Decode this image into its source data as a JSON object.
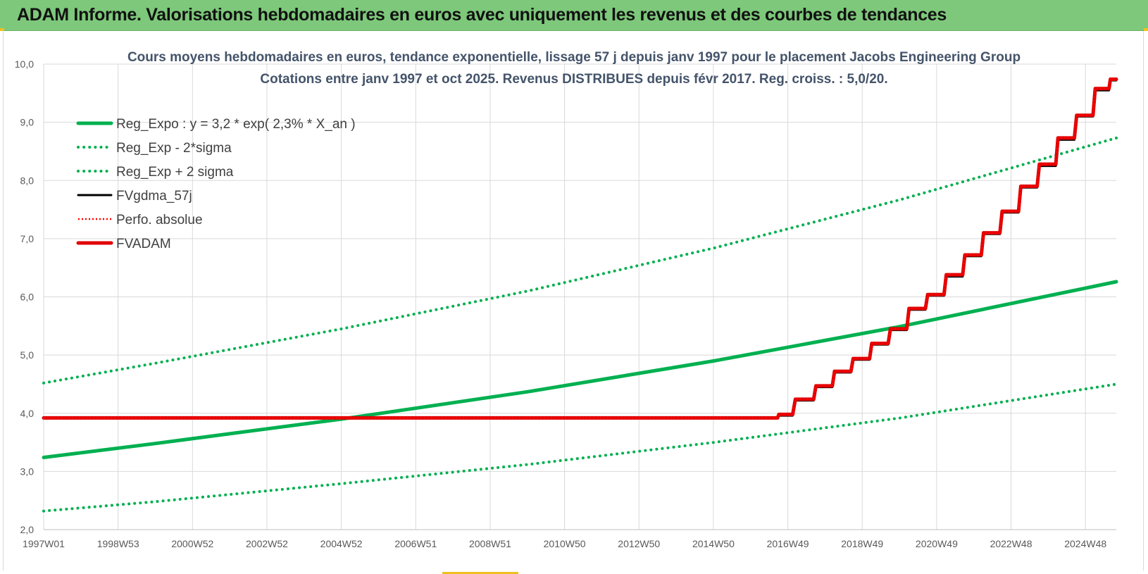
{
  "header": {
    "title": "ADAM Informe. Valorisations hebdomadaires en euros avec uniquement les revenus et des courbes de tendances"
  },
  "chart_data": {
    "type": "line",
    "title_line1": "Cours moyens hebdomadaires en euros, tendance exponentielle, lissage 57 j depuis janv 1997 pour le placement Jacobs Engineering Group",
    "title_line2": "Cotations entre janv 1997 et oct 2025. Revenus DISTRIBUES depuis févr 2017. Reg. croiss. : 5,0/20.",
    "x_tick_labels": [
      "1997W01",
      "1998W53",
      "2000W52",
      "2002W52",
      "2004W52",
      "2006W51",
      "2008W51",
      "2010W50",
      "2012W50",
      "2014W50",
      "2016W49",
      "2018W49",
      "2020W49",
      "2022W48",
      "2024W48"
    ],
    "x_range": [
      1997.0,
      2025.8
    ],
    "ylim": [
      2.0,
      10.0
    ],
    "y_tick_labels": [
      "2,0",
      "3,0",
      "4,0",
      "5,0",
      "6,0",
      "7,0",
      "8,0",
      "9,0",
      "10,0"
    ],
    "grid": true,
    "legend_position": "top-left",
    "series": [
      {
        "name": "Reg_Expo : y = 3,2 * exp( 2,3% *  X_an )",
        "color": "#00b050",
        "style": "solid",
        "x": [
          1997.0,
          2000.0,
          2005.0,
          2010.0,
          2015.0,
          2020.0,
          2025.8
        ],
        "values": [
          3.24,
          3.48,
          3.9,
          4.37,
          4.9,
          5.49,
          6.26
        ]
      },
      {
        "name": "Reg_Exp - 2*sigma",
        "color": "#00b050",
        "style": "dotted",
        "x": [
          1997.0,
          2000.0,
          2005.0,
          2010.0,
          2015.0,
          2020.0,
          2025.8
        ],
        "values": [
          2.32,
          2.48,
          2.79,
          3.12,
          3.5,
          3.92,
          4.5
        ]
      },
      {
        "name": "Reg_Exp + 2 sigma",
        "color": "#00b050",
        "style": "dotted",
        "x": [
          1997.0,
          2000.0,
          2005.0,
          2010.0,
          2015.0,
          2020.0,
          2025.8
        ],
        "values": [
          4.52,
          4.86,
          5.45,
          6.1,
          6.84,
          7.67,
          8.73
        ]
      },
      {
        "name": "FVgdma_57j",
        "color": "#000000",
        "style": "solid",
        "x": [
          1997.0,
          2016.6,
          2016.9,
          2017.5,
          2018.0,
          2018.5,
          2019.0,
          2019.5,
          2020.0,
          2020.5,
          2021.0,
          2021.5,
          2022.0,
          2022.5,
          2023.0,
          2023.5,
          2024.0,
          2024.5,
          2025.0,
          2025.5,
          2025.8
        ],
        "values": [
          3.92,
          3.92,
          3.96,
          4.22,
          4.45,
          4.7,
          4.92,
          5.18,
          5.43,
          5.78,
          6.02,
          6.35,
          6.7,
          7.08,
          7.45,
          7.88,
          8.25,
          8.7,
          9.1,
          9.55,
          9.72
        ]
      },
      {
        "name": "Perfo. absolue",
        "color": "#ff0000",
        "style": "dotted",
        "x": [
          1997.0,
          2016.6,
          2016.9,
          2017.5,
          2018.0,
          2018.5,
          2019.0,
          2019.5,
          2020.0,
          2020.5,
          2021.0,
          2021.5,
          2022.0,
          2022.5,
          2023.0,
          2023.5,
          2024.0,
          2024.5,
          2025.0,
          2025.5,
          2025.8
        ],
        "values": [
          3.92,
          3.92,
          3.98,
          4.24,
          4.47,
          4.72,
          4.94,
          5.2,
          5.45,
          5.8,
          6.04,
          6.38,
          6.72,
          7.1,
          7.47,
          7.9,
          8.28,
          8.73,
          9.12,
          9.58,
          9.74
        ]
      },
      {
        "name": "FVADAM",
        "color": "#e00000",
        "style": "solid-thick",
        "x": [
          1997.0,
          2016.6,
          2016.9,
          2017.5,
          2018.0,
          2018.5,
          2019.0,
          2019.5,
          2020.0,
          2020.5,
          2021.0,
          2021.5,
          2022.0,
          2022.5,
          2023.0,
          2023.5,
          2024.0,
          2024.5,
          2025.0,
          2025.5,
          2025.8
        ],
        "values": [
          3.92,
          3.92,
          3.98,
          4.24,
          4.47,
          4.72,
          4.94,
          5.2,
          5.45,
          5.8,
          6.04,
          6.38,
          6.72,
          7.1,
          7.47,
          7.9,
          8.28,
          8.73,
          9.12,
          9.58,
          9.74
        ]
      }
    ]
  }
}
